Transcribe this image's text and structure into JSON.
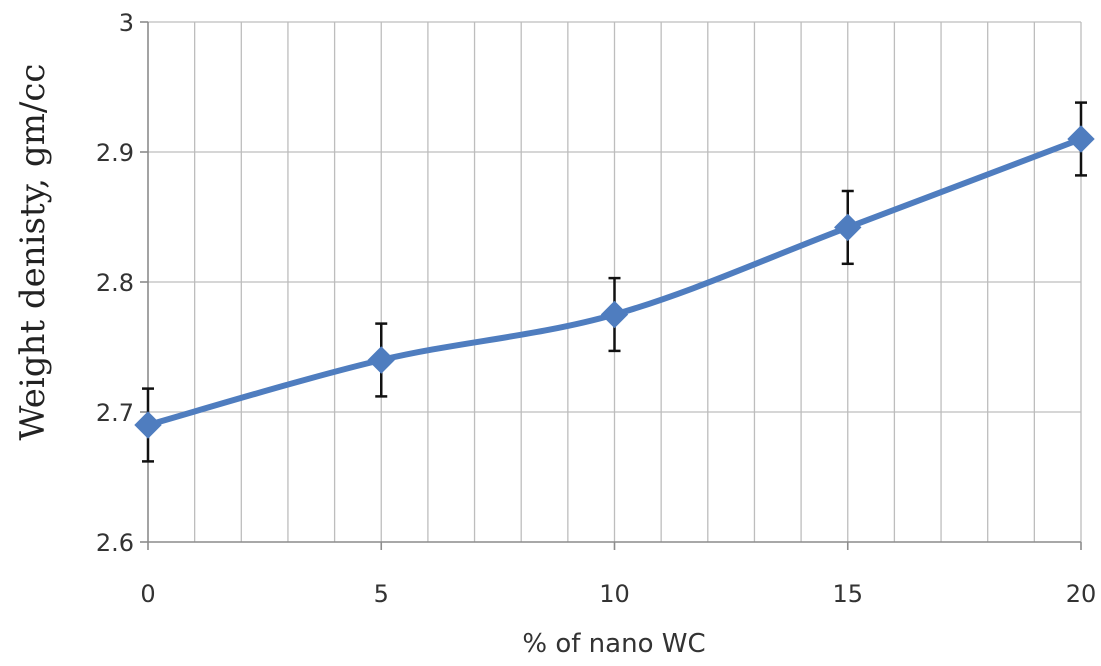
{
  "chart_data": {
    "type": "line",
    "title": "",
    "xlabel": "% of nano WC",
    "ylabel": "Weight denisty, gm/cc",
    "x": [
      0,
      5,
      10,
      15,
      20
    ],
    "series": [
      {
        "values": [
          2.69,
          2.74,
          2.775,
          2.842,
          2.91
        ],
        "error": [
          0.028,
          0.028,
          0.028,
          0.028,
          0.028
        ],
        "color": "#4F7DBF",
        "marker": "diamond"
      }
    ],
    "xlim": [
      0,
      20
    ],
    "ylim": [
      2.6,
      3.0
    ],
    "x_ticks": [
      0,
      5,
      10,
      15,
      20
    ],
    "x_tick_labels": [
      "0",
      "5",
      "10",
      "15",
      "20"
    ],
    "y_ticks": [
      2.6,
      2.7,
      2.8,
      2.9,
      3.0
    ],
    "y_tick_labels": [
      "2.6",
      "2.7",
      "2.8",
      "2.9",
      "3"
    ],
    "x_minor_grid_step": 1,
    "grid": true,
    "legend": "none"
  }
}
